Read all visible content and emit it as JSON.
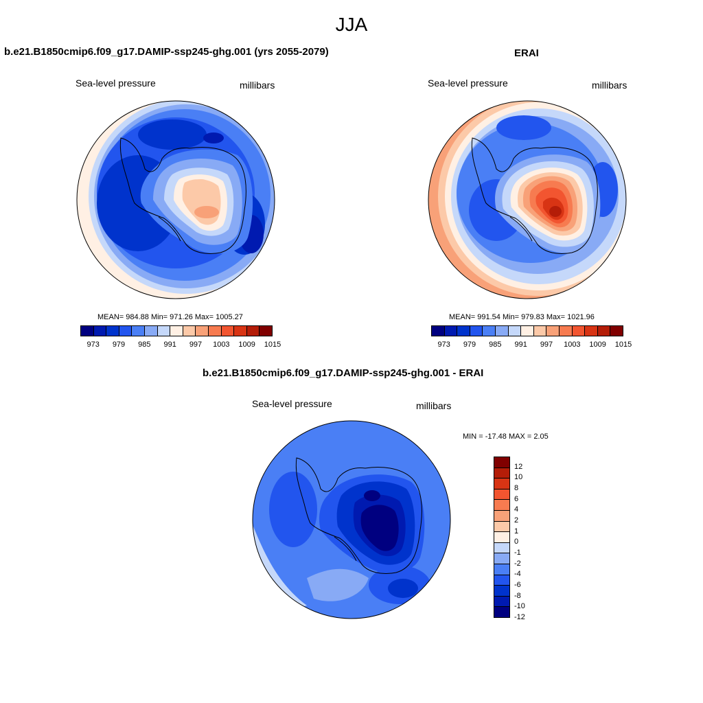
{
  "season": "JJA",
  "panels": [
    {
      "title": "b.e21.B1850cmip6.f09_g17.DAMIP-ssp245-ghg.001 (yrs 2055-2079)",
      "variable": "Sea-level pressure",
      "units": "millibars",
      "stats": "MEAN= 984.88  Min= 971.26  Max= 1005.27"
    },
    {
      "title": "ERAI",
      "variable": "Sea-level pressure",
      "units": "millibars",
      "stats": "MEAN= 991.54  Min= 979.83  Max= 1021.96"
    },
    {
      "title": "b.e21.B1850cmip6.f09_g17.DAMIP-ssp245-ghg.001 - ERAI",
      "variable": "Sea-level pressure",
      "units": "millibars",
      "stats": "MIN = -17.48 MAX =   2.05"
    }
  ],
  "abs_colorbar": {
    "colors": [
      "#000080",
      "#001ab0",
      "#0033cc",
      "#2255ee",
      "#4a7ff5",
      "#88aaf5",
      "#c5d8fa",
      "#fff0e4",
      "#fcc9a8",
      "#f8a178",
      "#f77b50",
      "#f25530",
      "#d83414",
      "#b41d08",
      "#800000"
    ],
    "tick_labels": [
      "973",
      "979",
      "985",
      "991",
      "997",
      "1003",
      "1009",
      "1015"
    ]
  },
  "diff_colorbar": {
    "colors": [
      "#800000",
      "#b41d08",
      "#d83414",
      "#f25530",
      "#f77b50",
      "#f8a178",
      "#fcc9a8",
      "#fff0e4",
      "#c5d8fa",
      "#88aaf5",
      "#4a7ff5",
      "#2255ee",
      "#0033cc",
      "#001ab0",
      "#000080"
    ],
    "tick_labels": [
      "12",
      "10",
      "8",
      "6",
      "4",
      "2",
      "1",
      "0",
      "-1",
      "-2",
      "-4",
      "-6",
      "-8",
      "-10",
      "-12"
    ]
  }
}
